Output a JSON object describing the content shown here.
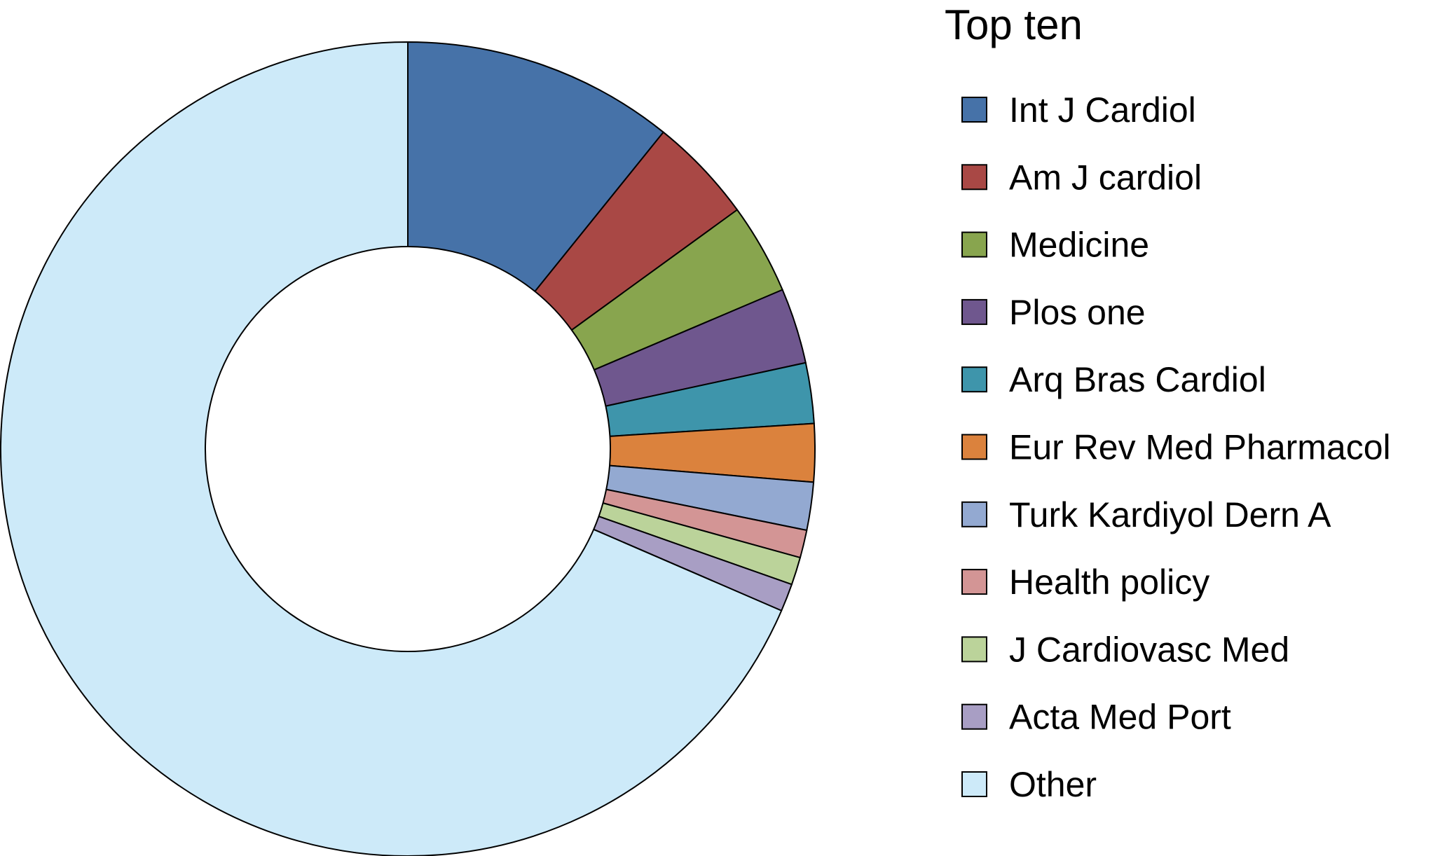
{
  "chart_data": {
    "type": "pie",
    "style": "donut",
    "legend": {
      "title": "Top ten",
      "placement": "right"
    },
    "slices": [
      {
        "label": "Int J Cardiol",
        "value": 10.8,
        "color": "#4672a8"
      },
      {
        "label": "Am J cardiol",
        "value": 4.2,
        "color": "#a94845"
      },
      {
        "label": "Medicine",
        "value": 3.6,
        "color": "#88a54e"
      },
      {
        "label": "Plos one",
        "value": 3.0,
        "color": "#6f578e"
      },
      {
        "label": "Arq Bras Cardiol",
        "value": 2.4,
        "color": "#3e95ab"
      },
      {
        "label": "Eur Rev Med Pharmacol",
        "value": 2.3,
        "color": "#db823d"
      },
      {
        "label": "Turk Kardiyol Dern A",
        "value": 1.9,
        "color": "#93a9d1"
      },
      {
        "label": "Health policy",
        "value": 1.1,
        "color": "#d39595"
      },
      {
        "label": "J Cardiovasc Med",
        "value": 1.1,
        "color": "#bbd39a"
      },
      {
        "label": "Acta Med Port",
        "value": 1.1,
        "color": "#a89ec4"
      },
      {
        "label": "Other",
        "value": 68.5,
        "color": "#cdeaf9"
      }
    ]
  }
}
